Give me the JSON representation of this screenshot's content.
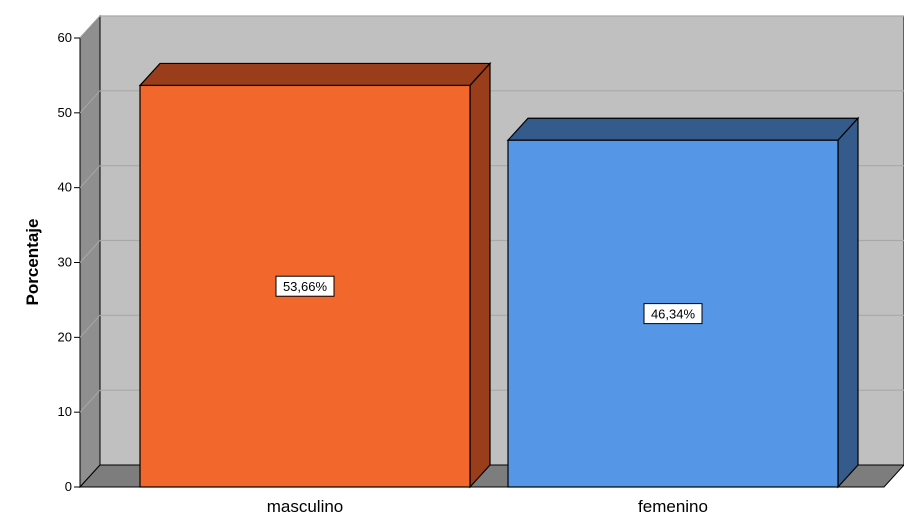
{
  "chart_data": {
    "type": "bar",
    "title": "",
    "xlabel": "",
    "ylabel": "Porcentaje",
    "ylim": [
      0,
      60
    ],
    "yticks": [
      0,
      10,
      20,
      30,
      40,
      50,
      60
    ],
    "categories": [
      "masculino",
      "femenino"
    ],
    "values": [
      53.66,
      46.34
    ],
    "data_labels": [
      "53,66%",
      "46,34%"
    ],
    "colors": {
      "bars_front": [
        "#f2672b",
        "#5596e6"
      ],
      "bars_side": [
        "#993d1a",
        "#345b8c"
      ],
      "plot_background": "#c0c0c0",
      "floor": "#7d7d7d",
      "wall": "#8f8f8f",
      "gridline": "#a8a8a8"
    },
    "grid": true,
    "legend": "none"
  }
}
